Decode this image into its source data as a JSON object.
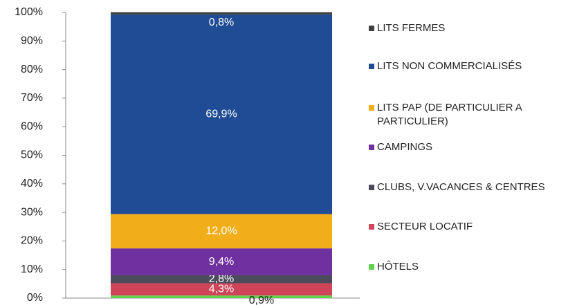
{
  "chart_data": {
    "type": "stacked_bar",
    "categories": [
      null
    ],
    "series": [
      {
        "name": "HÔTELS",
        "color": "#5fd14b",
        "values": [
          0.9
        ],
        "value_labels": [
          "0,9%"
        ]
      },
      {
        "name": "SECTEUR LOCATIF",
        "color": "#cf4459",
        "values": [
          4.3
        ],
        "value_labels": [
          "4,3%"
        ]
      },
      {
        "name": "CLUBS, V.VACANCES & CENTRES",
        "color": "#4b4b5b",
        "values": [
          2.8
        ],
        "value_labels": [
          "2,8%"
        ]
      },
      {
        "name": "CAMPINGS",
        "color": "#7031a0",
        "values": [
          9.4
        ],
        "value_labels": [
          "9,4%"
        ]
      },
      {
        "name": "LITS PAP (DE PARTICULIER A PARTICULIER)",
        "color": "#f2ae19",
        "values": [
          12.0
        ],
        "value_labels": [
          "12,0%"
        ]
      },
      {
        "name": "LITS NON COMMERCIALISÉS",
        "color": "#1f4c95",
        "values": [
          69.9
        ],
        "value_labels": [
          "69,9%"
        ]
      },
      {
        "name": "LITS FERMES",
        "color": "#404040",
        "values": [
          0.8
        ],
        "value_labels": [
          "0,8%"
        ]
      }
    ],
    "ylim": [
      0,
      100
    ],
    "yticks": [
      {
        "value": 0,
        "label": "0%"
      },
      {
        "value": 10,
        "label": "10%"
      },
      {
        "value": 20,
        "label": "20%"
      },
      {
        "value": 30,
        "label": "30%"
      },
      {
        "value": 40,
        "label": "40%"
      },
      {
        "value": 50,
        "label": "50%"
      },
      {
        "value": 60,
        "label": "60%"
      },
      {
        "value": 70,
        "label": "70%"
      },
      {
        "value": 80,
        "label": "80%"
      },
      {
        "value": 90,
        "label": "90%"
      },
      {
        "value": 100,
        "label": "100%"
      }
    ],
    "legend": "right"
  }
}
